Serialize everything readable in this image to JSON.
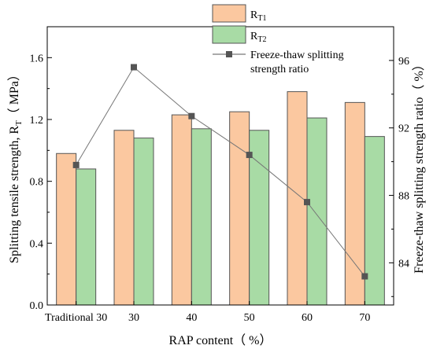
{
  "chart_data": {
    "type": "bar",
    "categories": [
      "Traditional 30",
      "30",
      "40",
      "50",
      "60",
      "70"
    ],
    "xlabel": "RAP content（ %）",
    "ylabel": "Splitting tensile strength, R",
    "ylabel_sub": "T",
    "ylabel_unit": "（ MPa）",
    "y2label": "Freeze-thaw splitting strength ratio（ %）",
    "ylim": [
      0,
      1.8
    ],
    "yticks": [
      "0.0",
      "0.4",
      "0.8",
      "1.2",
      "1.6"
    ],
    "y2lim": [
      81.5,
      98
    ],
    "y2ticks": [
      "84",
      "88",
      "92",
      "96"
    ],
    "series": [
      {
        "name": "R",
        "name_sub": "T1",
        "axis": "left",
        "kind": "bar",
        "color": "#fbc8a0",
        "values": [
          0.98,
          1.13,
          1.23,
          1.25,
          1.38,
          1.31
        ]
      },
      {
        "name": "R",
        "name_sub": "T2",
        "axis": "left",
        "kind": "bar",
        "color": "#a8dba5",
        "values": [
          0.88,
          1.08,
          1.14,
          1.13,
          1.21,
          1.09
        ]
      },
      {
        "name": "Freeze-thaw splitting",
        "name_line2": "strength ratio",
        "axis": "right",
        "kind": "line",
        "color": "#555555",
        "values": [
          89.8,
          95.6,
          92.7,
          90.4,
          87.6,
          83.2
        ]
      }
    ],
    "legend_position": "top-right",
    "grid": false
  }
}
